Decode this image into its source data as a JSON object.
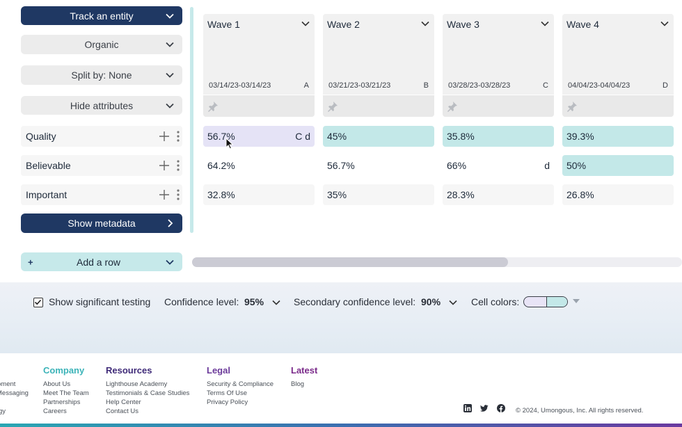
{
  "controls": {
    "track_entity": "Track an entity",
    "organic": "Organic",
    "split_by": "Split by: None",
    "hide_attributes": "Hide attributes",
    "show_metadata": "Show metadata",
    "add_row": "Add a row",
    "add_row_icon": "+"
  },
  "rows": [
    {
      "label": "Quality"
    },
    {
      "label": "Believable"
    },
    {
      "label": "Important"
    }
  ],
  "waves": [
    {
      "title": "Wave 1",
      "date": "03/14/23-03/14/23",
      "letter": "A",
      "cells": [
        {
          "value": "56.7%",
          "sig": "C d"
        },
        {
          "value": "64.2%",
          "sig": ""
        },
        {
          "value": "32.8%",
          "sig": ""
        }
      ]
    },
    {
      "title": "Wave 2",
      "date": "03/21/23-03/21/23",
      "letter": "B",
      "cells": [
        {
          "value": "45%",
          "sig": ""
        },
        {
          "value": "56.7%",
          "sig": ""
        },
        {
          "value": "35%",
          "sig": ""
        }
      ]
    },
    {
      "title": "Wave 3",
      "date": "03/28/23-03/28/23",
      "letter": "C",
      "cells": [
        {
          "value": "35.8%",
          "sig": ""
        },
        {
          "value": "66%",
          "sig": "d"
        },
        {
          "value": "28.3%",
          "sig": ""
        }
      ]
    },
    {
      "title": "Wave 4",
      "date": "04/04/23-04/04/23",
      "letter": "D",
      "cells": [
        {
          "value": "39.3%",
          "sig": ""
        },
        {
          "value": "50%",
          "sig": ""
        },
        {
          "value": "26.8%",
          "sig": ""
        }
      ]
    }
  ],
  "settings": {
    "show_significant_testing": "Show significant testing",
    "show_significant_checked": true,
    "confidence_label": "Confidence level:",
    "confidence_value": "95%",
    "secondary_label": "Secondary confidence level:",
    "secondary_value": "90%",
    "cell_colors_label": "Cell colors:"
  },
  "footer": {
    "partial_left": [
      "pment",
      "Messaging",
      "gy"
    ],
    "columns": [
      {
        "heading": "Company",
        "color": "#3bb3b8",
        "links": [
          "About Us",
          "Meet The Team",
          "Partnerships",
          "Careers"
        ]
      },
      {
        "heading": "Resources",
        "color": "#3f2a78",
        "links": [
          "Lighthouse Academy",
          "Testimonials & Case Studies",
          "Help Center",
          "Contact Us"
        ]
      },
      {
        "heading": "Legal",
        "color": "#6b3a9a",
        "links": [
          "Security & Compliance",
          "Terms Of Use",
          "Privacy Policy"
        ]
      },
      {
        "heading": "Latest",
        "color": "#7a2a8a",
        "links": [
          "Blog"
        ]
      }
    ],
    "social_icons": [
      "linkedin-icon",
      "twitter-icon",
      "facebook-icon"
    ],
    "copyright": "© 2024, Umongous, Inc. All rights reserved."
  },
  "colors": {
    "navy": "#1f3863",
    "teal_cell": "#c3e8e8",
    "lavender_cell": "#e5e3f6",
    "gray_control": "#ececec"
  }
}
